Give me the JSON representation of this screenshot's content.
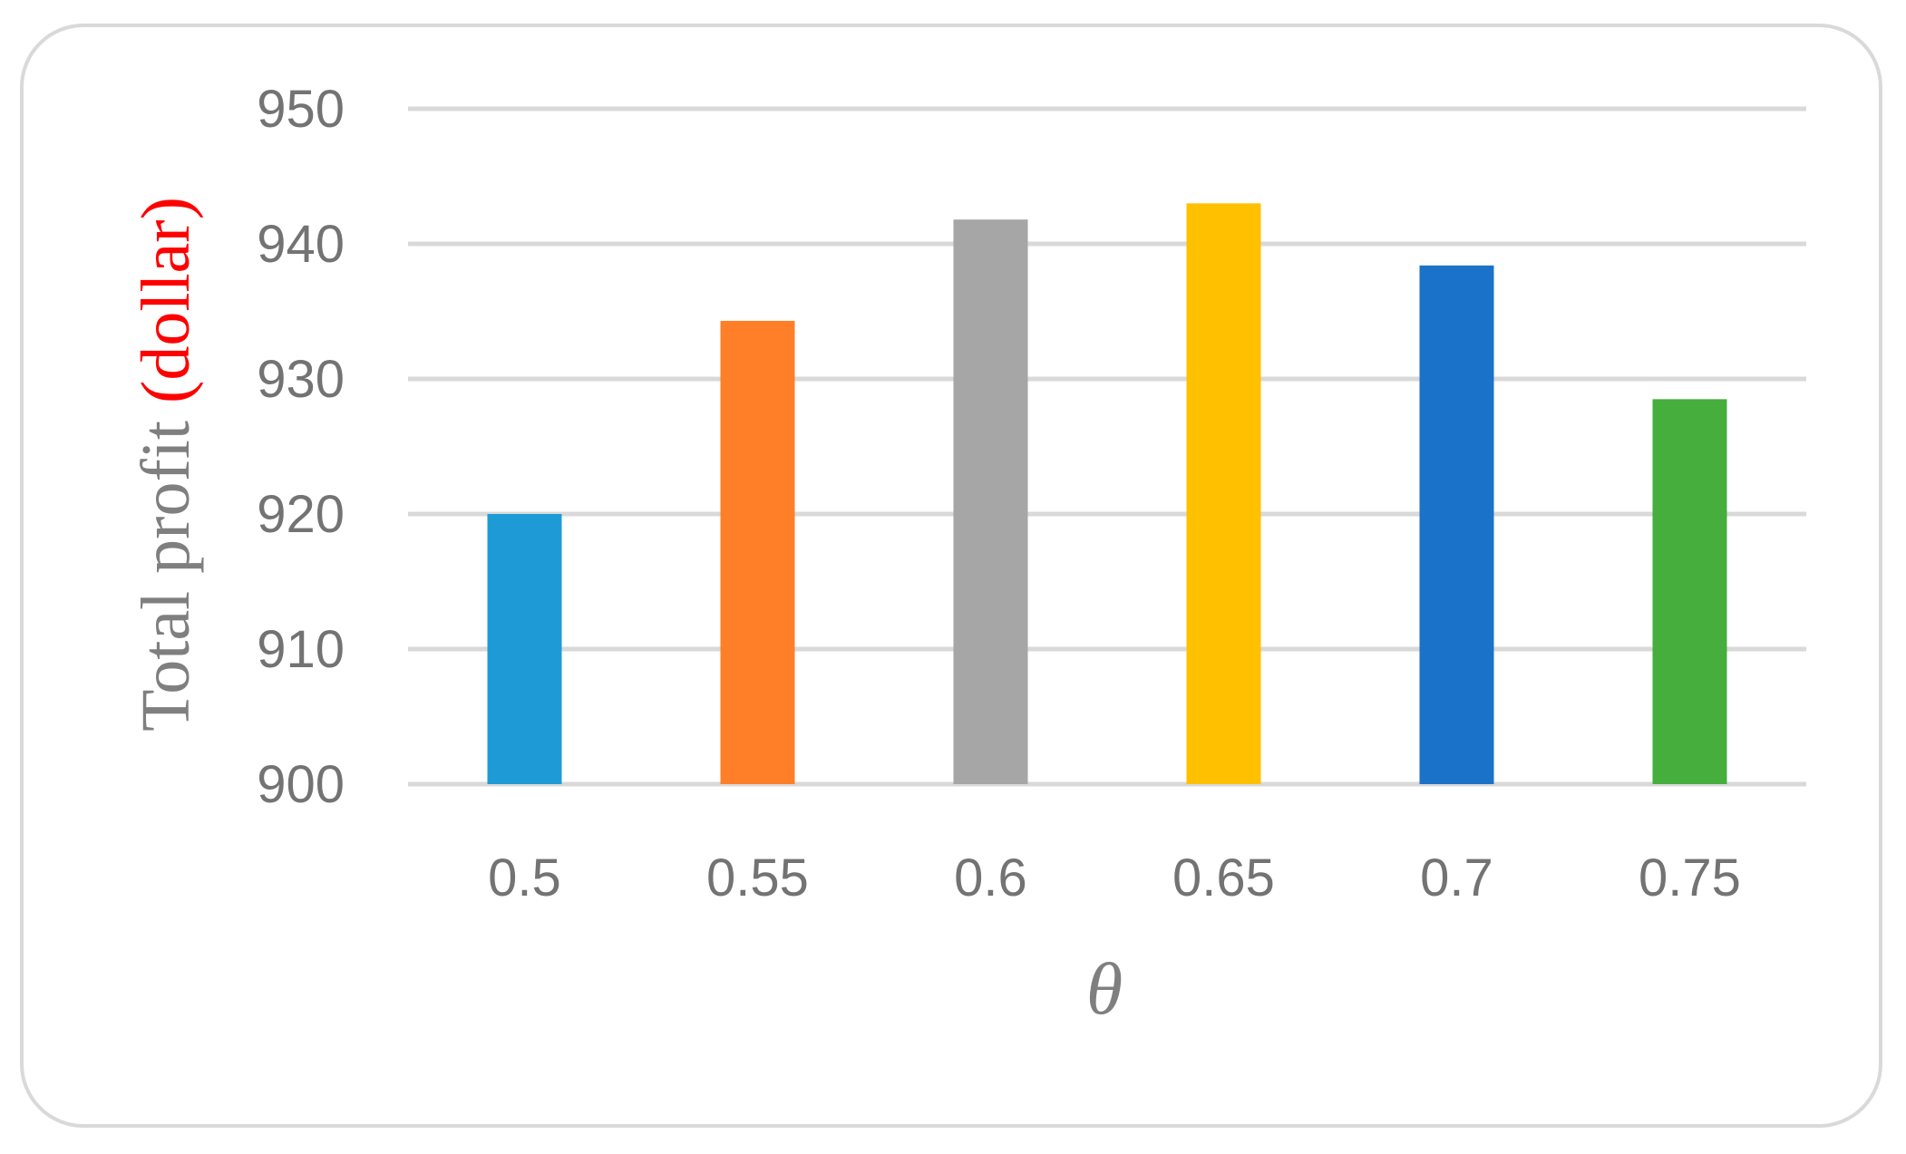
{
  "chart_data": {
    "type": "bar",
    "categories": [
      "0.5",
      "0.55",
      "0.6",
      "0.65",
      "0.7",
      "0.75"
    ],
    "values": [
      920,
      934.3,
      941.8,
      943,
      938.4,
      928.5
    ],
    "colors": [
      "#1e9bd7",
      "#fe7f28",
      "#a6a6a6",
      "#ffc000",
      "#1a73c8",
      "#45ae3c"
    ],
    "ylabel_main": "Total profit ",
    "ylabel_unit": "(dollar)",
    "xlabel": "θ",
    "ylim": [
      900,
      950
    ],
    "yticks": [
      "900",
      "910",
      "920",
      "930",
      "940",
      "950"
    ],
    "grid": true
  }
}
